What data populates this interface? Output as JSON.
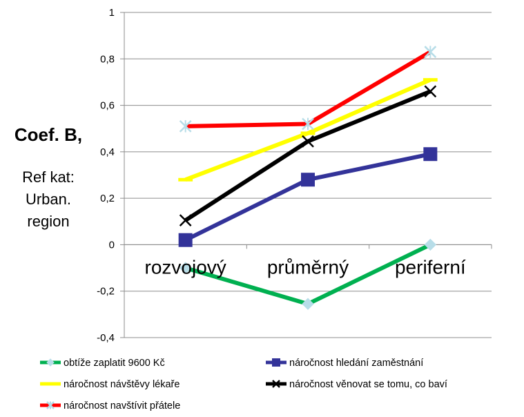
{
  "chart_data": {
    "type": "line",
    "title": "",
    "ylabel": "Coef. B,",
    "ylabel_note": [
      "Ref kat:",
      "Urban.",
      "region"
    ],
    "categories": [
      "rozvojový",
      "průměrný",
      "periferní"
    ],
    "ylim": [
      -0.4,
      1
    ],
    "yticks": [
      -0.4,
      -0.2,
      0,
      0.2,
      0.4,
      0.6,
      0.8,
      1
    ],
    "ytick_labels": [
      "-0,4",
      "-0,2",
      "0",
      "0,2",
      "0,4",
      "0,6",
      "0,8",
      "1"
    ],
    "grid": true,
    "legend_position": "bottom",
    "series": [
      {
        "name": "obtíže zaplatit 9600 Kč",
        "values": [
          -0.1,
          -0.255,
          0.0
        ],
        "color": "#00b050",
        "marker": "diamond",
        "marker_color": "#b7dde8"
      },
      {
        "name": "náročnost hledání zaměstnání",
        "values": [
          0.02,
          0.28,
          0.39
        ],
        "color": "#333399",
        "marker": "square",
        "marker_color": "#333399"
      },
      {
        "name": "náročnost návštěvy lékaře",
        "values": [
          0.28,
          0.48,
          0.71
        ],
        "color": "#ffff00",
        "marker": "dash",
        "marker_color": "#ffff00"
      },
      {
        "name": "náročnost věnovat se tomu, co baví",
        "values": [
          0.105,
          0.445,
          0.66
        ],
        "color": "#000000",
        "marker": "x",
        "marker_color": "#000000"
      },
      {
        "name": "náročnost navštívit přátele",
        "values": [
          0.51,
          0.52,
          0.83
        ],
        "color": "#ff0000",
        "marker": "star",
        "marker_color": "#b7dde8"
      }
    ]
  }
}
